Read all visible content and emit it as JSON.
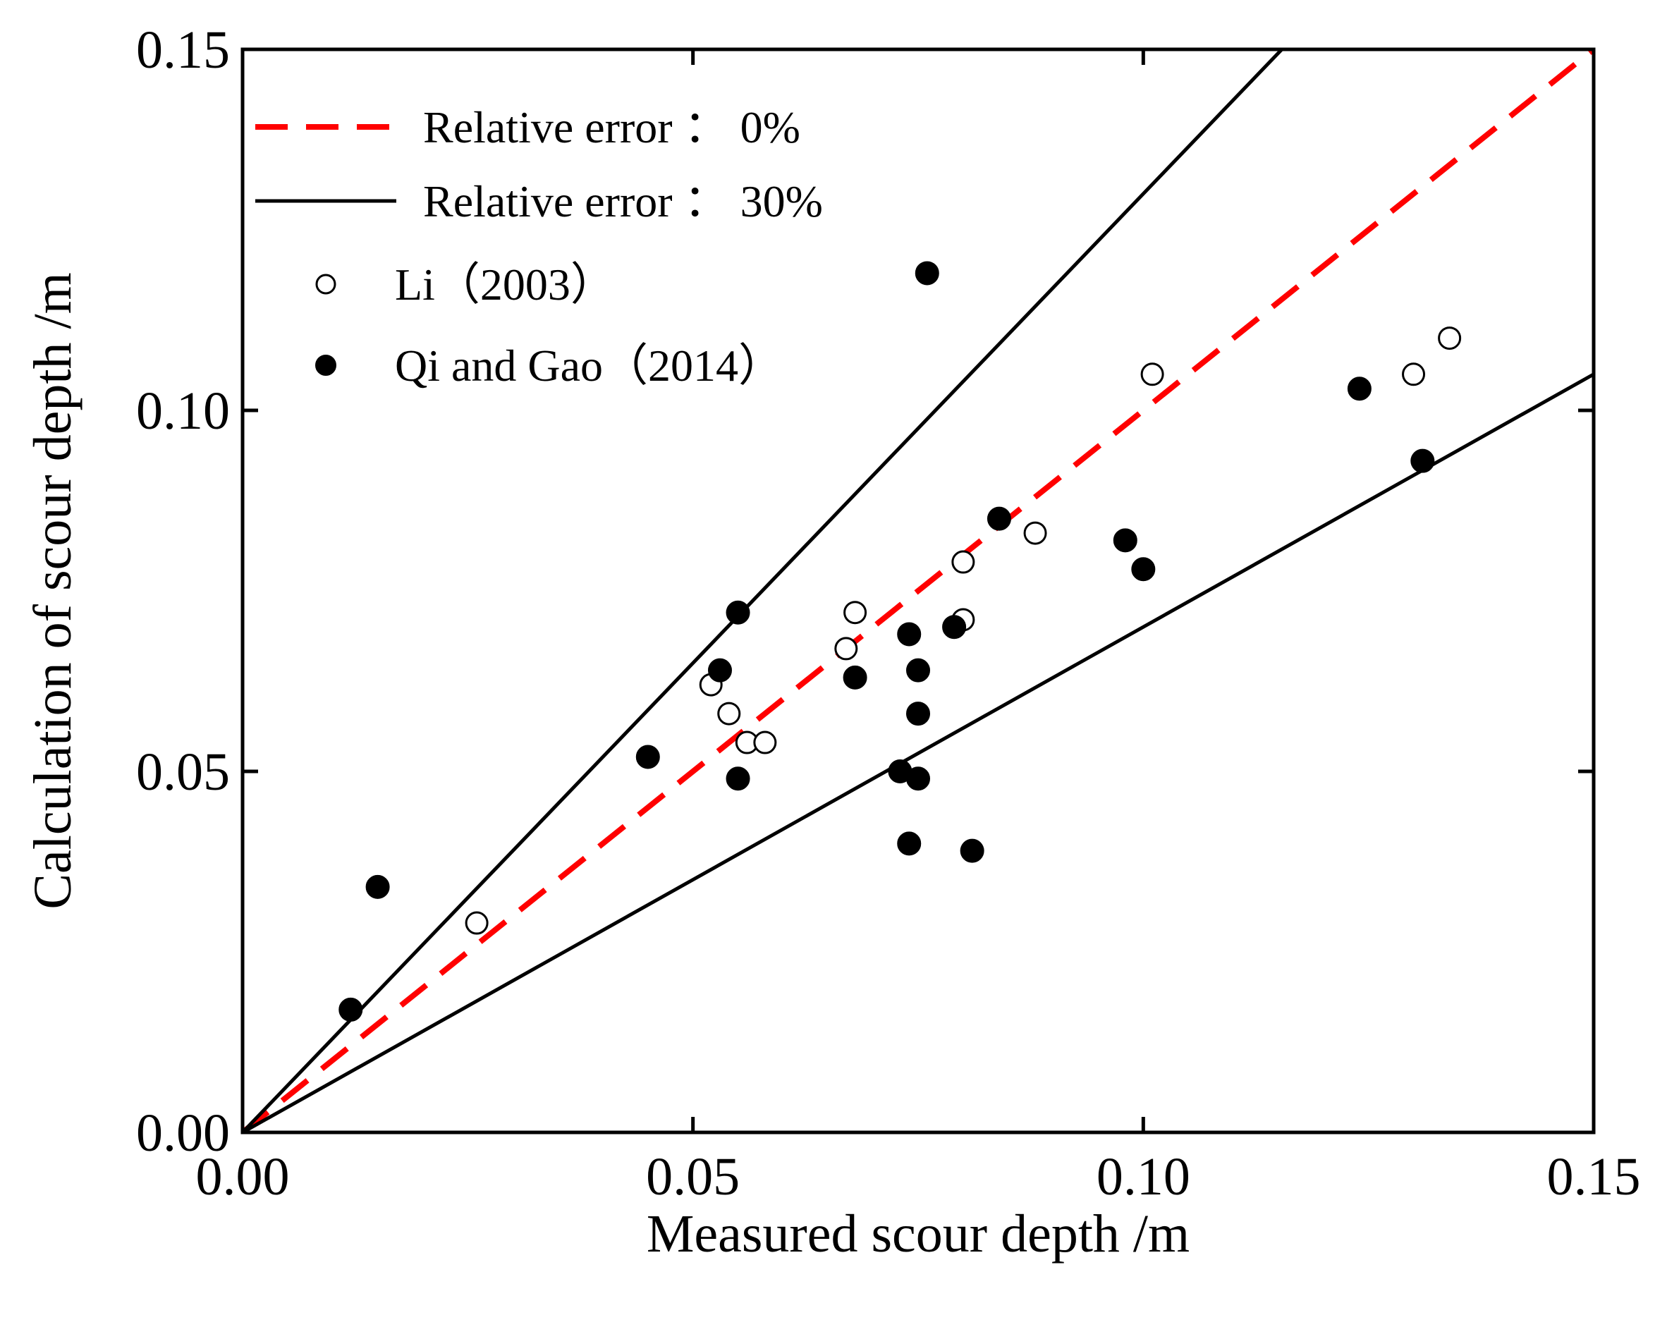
{
  "chart_data": {
    "type": "scatter",
    "title": "",
    "xlabel": "Measured scour depth /m",
    "ylabel": "Calculation of scour depth /m",
    "xlim": [
      0.0,
      0.15
    ],
    "ylim": [
      0.0,
      0.15
    ],
    "x_ticks": [
      "0.00",
      "0.05",
      "0.10",
      "0.15"
    ],
    "y_ticks": [
      "0.00",
      "0.05",
      "0.10",
      "0.15"
    ],
    "grid": false,
    "legend_position": "top-left",
    "reference_lines": [
      {
        "name": "Relative error ： 0%",
        "slope": 1.0,
        "color": "#ff0000",
        "style": "dashed"
      },
      {
        "name": "Relative error ： 30%",
        "slopes": [
          1.3,
          0.7
        ],
        "color": "#000000",
        "style": "solid"
      }
    ],
    "series": [
      {
        "name": "Li（2003）",
        "marker": "open-circle",
        "points": [
          [
            0.026,
            0.029
          ],
          [
            0.052,
            0.062
          ],
          [
            0.054,
            0.058
          ],
          [
            0.056,
            0.054
          ],
          [
            0.058,
            0.054
          ],
          [
            0.067,
            0.067
          ],
          [
            0.068,
            0.072
          ],
          [
            0.08,
            0.071
          ],
          [
            0.08,
            0.079
          ],
          [
            0.088,
            0.083
          ],
          [
            0.101,
            0.105
          ],
          [
            0.13,
            0.105
          ],
          [
            0.134,
            0.11
          ]
        ]
      },
      {
        "name": "Qi and Gao（2014）",
        "marker": "filled-circle",
        "points": [
          [
            0.012,
            0.017
          ],
          [
            0.015,
            0.034
          ],
          [
            0.045,
            0.052
          ],
          [
            0.053,
            0.064
          ],
          [
            0.055,
            0.072
          ],
          [
            0.055,
            0.049
          ],
          [
            0.068,
            0.063
          ],
          [
            0.073,
            0.05
          ],
          [
            0.074,
            0.069
          ],
          [
            0.074,
            0.04
          ],
          [
            0.075,
            0.064
          ],
          [
            0.075,
            0.058
          ],
          [
            0.075,
            0.049
          ],
          [
            0.076,
            0.119
          ],
          [
            0.079,
            0.07
          ],
          [
            0.081,
            0.039
          ],
          [
            0.084,
            0.085
          ],
          [
            0.098,
            0.082
          ],
          [
            0.1,
            0.078
          ],
          [
            0.124,
            0.103
          ],
          [
            0.131,
            0.093
          ]
        ]
      }
    ]
  }
}
